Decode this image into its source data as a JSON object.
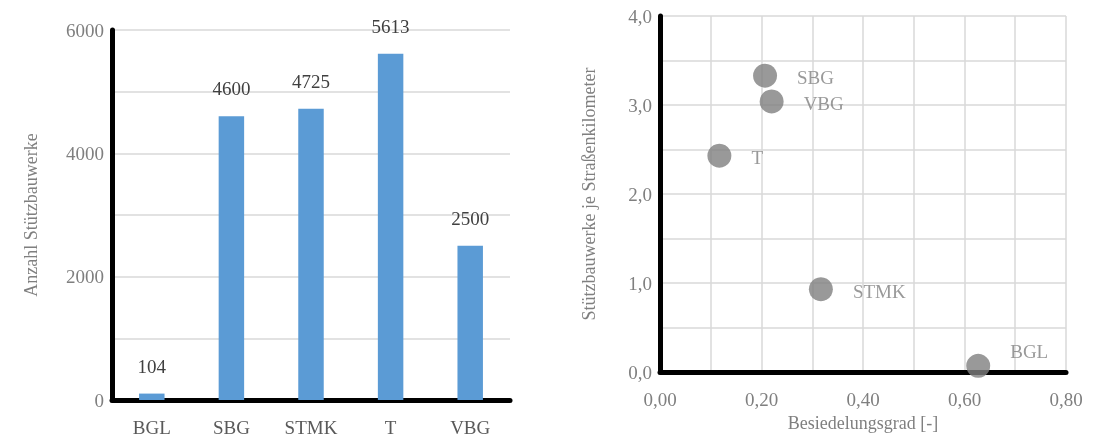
{
  "chart_data": [
    {
      "type": "bar",
      "ylabel": "Anzahl Stützbauwerke",
      "categories": [
        "BGL",
        "SBG",
        "STMK",
        "T",
        "VBG"
      ],
      "values": [
        104,
        4600,
        4725,
        5613,
        2500
      ],
      "color": "#5b9bd5",
      "data_labels": true,
      "ylim": [
        0,
        6000
      ],
      "yticks": [
        0,
        {
          "value": 1000,
          "label": null
        },
        2000,
        {
          "value": 3000,
          "label": null
        },
        4000,
        {
          "value": 5000,
          "label": null
        },
        6000
      ],
      "grid": "y"
    },
    {
      "type": "scatter",
      "xlabel": "Besiedelungsgrad [-]",
      "ylabel": "Stützbauwerke je Straßenkilometer",
      "x": [
        0.207,
        0.22,
        0.117,
        0.317,
        0.627
      ],
      "values": [
        3.33,
        3.04,
        2.43,
        0.93,
        0.07
      ],
      "color": "#808080",
      "marker": "circle",
      "grid": true,
      "xlim": [
        0,
        0.8
      ],
      "xticks": [
        {
          "value": 0,
          "label": "0,00"
        },
        {
          "value": 0.1,
          "label": null
        },
        {
          "value": 0.2,
          "label": "0,20"
        },
        {
          "value": 0.3,
          "label": null
        },
        {
          "value": 0.4,
          "label": "0,40"
        },
        {
          "value": 0.5,
          "label": null
        },
        {
          "value": 0.6,
          "label": "0,60"
        },
        {
          "value": 0.7,
          "label": null
        },
        {
          "value": 0.8,
          "label": "0,80"
        }
      ],
      "ylim": [
        0,
        4
      ],
      "yticks": [
        {
          "value": 0,
          "label": "0,0"
        },
        {
          "value": 0.5,
          "label": null
        },
        {
          "value": 1,
          "label": "1,0"
        },
        {
          "value": 1.5,
          "label": null
        },
        {
          "value": 2,
          "label": "2,0"
        },
        {
          "value": 2.5,
          "label": null
        },
        {
          "value": 3,
          "label": "3,0"
        },
        {
          "value": 3.5,
          "label": null
        },
        {
          "value": 4,
          "label": "4,0"
        }
      ],
      "annotations": [
        {
          "text": "SBG",
          "x": 0.207,
          "y": 3.33
        },
        {
          "text": "VBG",
          "x": 0.22,
          "y": 3.04
        },
        {
          "text": "T",
          "x": 0.117,
          "y": 2.43
        },
        {
          "text": "STMK",
          "x": 0.317,
          "y": 0.93
        },
        {
          "text": "BGL",
          "x": 0.627,
          "y": 0.07
        }
      ]
    }
  ]
}
